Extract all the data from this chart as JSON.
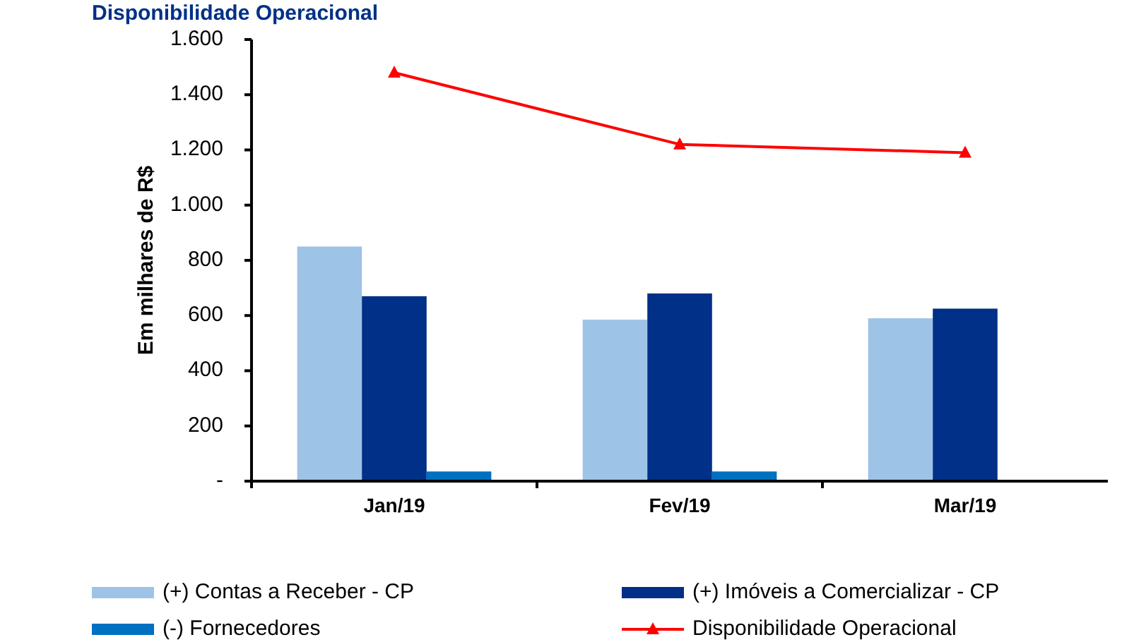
{
  "chart_data": {
    "type": "bar",
    "title": "Disponibilidade Operacional",
    "ylabel": "Em milhares de R$",
    "categories": [
      "Jan/19",
      "Fev/19",
      "Mar/19"
    ],
    "series": [
      {
        "name": "(+) Contas a Receber - CP",
        "color": "#9dc3e6",
        "values": [
          850,
          585,
          590
        ]
      },
      {
        "name": "(+) Imóveis a Comercializar - CP",
        "color": "#003087",
        "values": [
          670,
          680,
          625
        ]
      },
      {
        "name": "(-) Fornecedores",
        "color": "#0070c0",
        "values": [
          35,
          35,
          null
        ]
      },
      {
        "name": "Disponibilidade Operacional",
        "type": "line",
        "color": "#ff0000",
        "marker": "triangle",
        "values": [
          1480,
          1220,
          1190
        ]
      }
    ],
    "ylim": [
      0,
      1600
    ],
    "yticks": [
      {
        "value": 0,
        "label": "-"
      },
      {
        "value": 200,
        "label": "200"
      },
      {
        "value": 400,
        "label": "400"
      },
      {
        "value": 600,
        "label": "600"
      },
      {
        "value": 800,
        "label": "800"
      },
      {
        "value": 1000,
        "label": "1.000"
      },
      {
        "value": 1200,
        "label": "1.200"
      },
      {
        "value": 1400,
        "label": "1.400"
      },
      {
        "value": 1600,
        "label": "1.600"
      }
    ],
    "grid": false,
    "legend": "bottom"
  }
}
